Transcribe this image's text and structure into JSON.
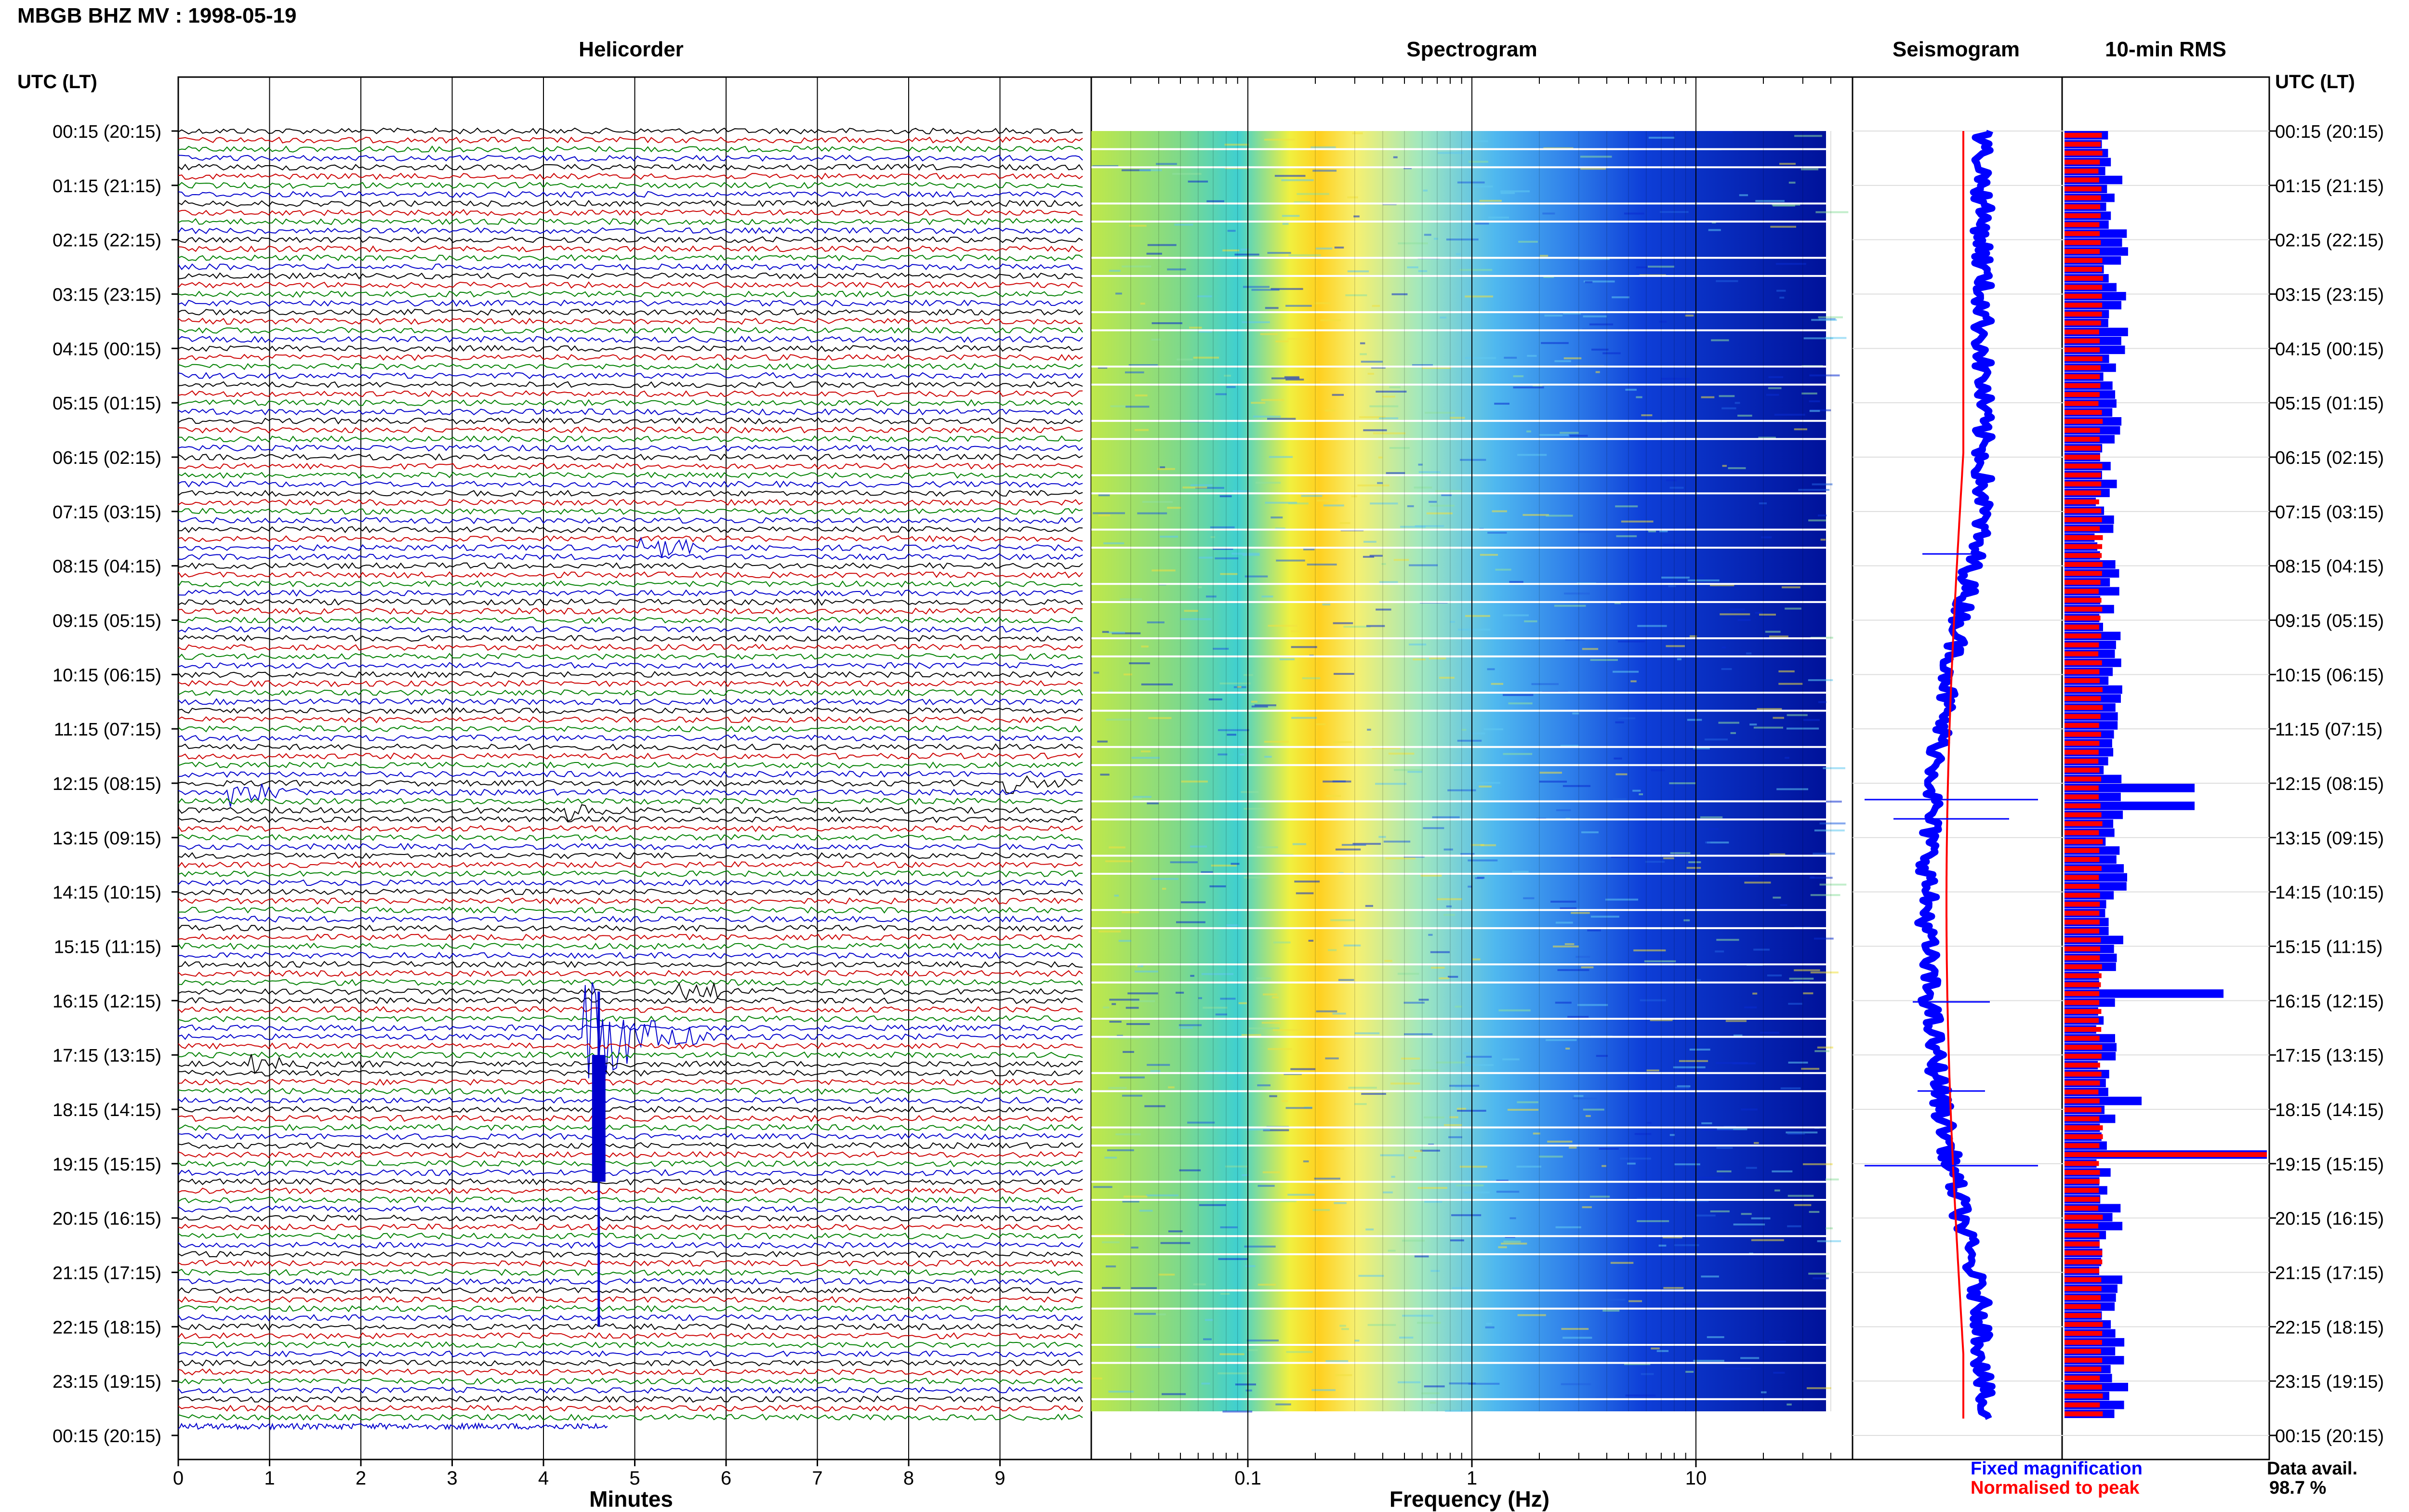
{
  "header": {
    "title": "MBGB BHZ MV : 1998-05-19"
  },
  "panels": {
    "helicorder": "Helicorder",
    "spectrogram": "Spectrogram",
    "seismogram": "Seismogram",
    "rms": "10-min RMS"
  },
  "time_axis": {
    "label": "UTC (LT)",
    "ticks": [
      "00:15 (20:15)",
      "01:15 (21:15)",
      "02:15 (22:15)",
      "03:15 (23:15)",
      "04:15 (00:15)",
      "05:15 (01:15)",
      "06:15 (02:15)",
      "07:15 (03:15)",
      "08:15 (04:15)",
      "09:15 (05:15)",
      "10:15 (06:15)",
      "11:15 (07:15)",
      "12:15 (08:15)",
      "13:15 (09:15)",
      "14:15 (10:15)",
      "15:15 (11:15)",
      "16:15 (12:15)",
      "17:15 (13:15)",
      "18:15 (14:15)",
      "19:15 (15:15)",
      "20:15 (16:15)",
      "21:15 (17:15)",
      "22:15 (18:15)",
      "23:15 (19:15)",
      "00:15 (20:15)"
    ]
  },
  "legend": {
    "fixed": "Fixed magnification",
    "normalised": "Normalised to peak",
    "availability_label": "Data avail.",
    "availability_value": "98.7 %"
  },
  "colors": {
    "blue": "#0000ff",
    "red": "#ff0000",
    "green": "#008000",
    "darkred": "#8b0000",
    "navy": "#000080"
  },
  "chart_data": [
    {
      "type": "line",
      "panel": "helicorder",
      "xlabel": "Minutes",
      "xlim": [
        0,
        10
      ],
      "x_ticks": [
        0,
        1,
        2,
        3,
        4,
        5,
        6,
        7,
        8,
        9
      ],
      "rows": 144,
      "row_minutes": 10,
      "row_colors": [
        "#000000",
        "#cc0000",
        "#008000",
        "#0000cc"
      ],
      "events": [
        {
          "row": 46,
          "minute": 5.1,
          "amplitude": 2.0,
          "color": "#0000cc"
        },
        {
          "row": 72,
          "minute": 9.1,
          "amplitude": 1.5,
          "color": "#000000"
        },
        {
          "row": 73,
          "minute": 0.6,
          "amplitude": 2.0,
          "color": "#0000cc"
        },
        {
          "row": 75,
          "minute": 4.3,
          "amplitude": 1.5,
          "color": "#000000"
        },
        {
          "row": 95,
          "minute": 5.5,
          "amplitude": 2.0,
          "color": "#000000"
        },
        {
          "row": 100,
          "minute": 4.5,
          "amplitude": 12.0,
          "color": "#0000cc"
        },
        {
          "row": 103,
          "minute": 0.8,
          "amplitude": 1.5,
          "color": "#000000"
        }
      ]
    },
    {
      "type": "heatmap",
      "panel": "spectrogram",
      "xlabel": "Frequency (Hz)",
      "x_scale": "log",
      "xlim": [
        0.02,
        50
      ],
      "x_ticks": [
        0.1,
        1,
        10
      ],
      "x_tick_labels": [
        "0.1",
        "1",
        "10"
      ],
      "peak_band_hz": [
        0.2,
        0.3
      ]
    },
    {
      "type": "line",
      "panel": "seismogram",
      "series": [
        {
          "name": "Fixed magnification",
          "color": "#0000ff"
        },
        {
          "name": "Normalised to peak",
          "color": "#ff0000"
        }
      ]
    },
    {
      "type": "bar",
      "panel": "rms",
      "orientation": "horizontal",
      "series": [
        {
          "name": "Fixed magnification",
          "color": "#0000ff"
        },
        {
          "name": "Normalised to peak",
          "color": "#ff0000"
        }
      ]
    }
  ]
}
